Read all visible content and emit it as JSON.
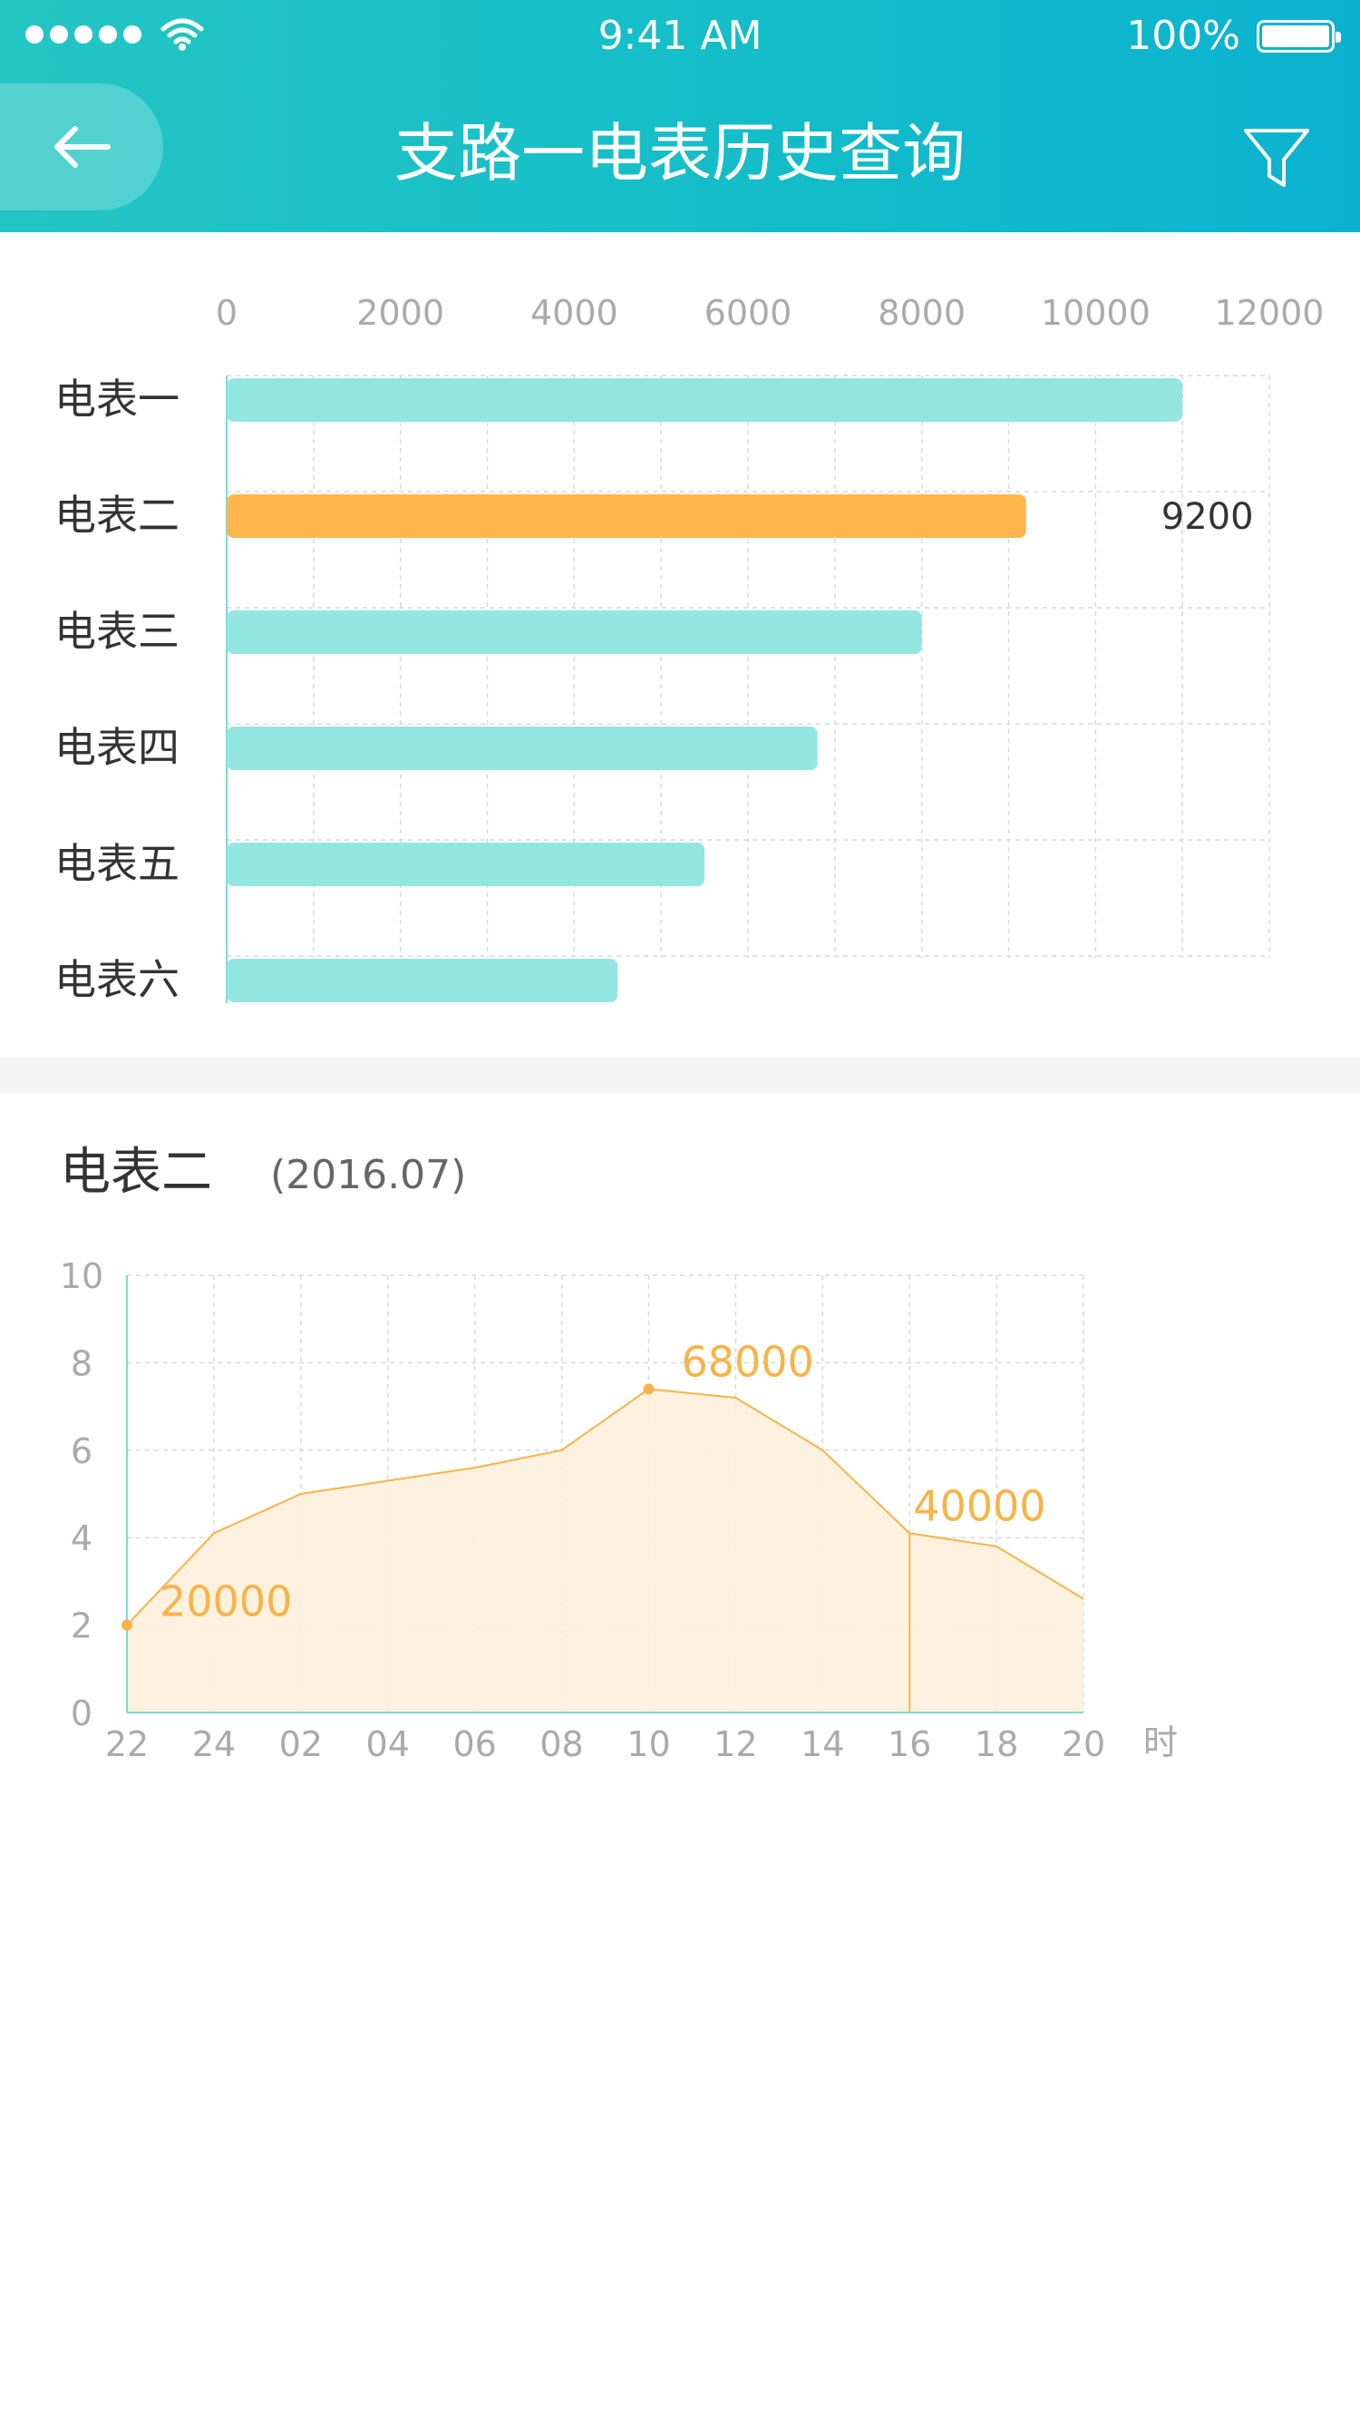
{
  "status_bar": {
    "time": "9:41 AM",
    "battery": "100%"
  },
  "header": {
    "title": "支路一电表历史查询"
  },
  "bar_section": {
    "highlight_value": "9200"
  },
  "detail": {
    "meter": "电表二",
    "period": "(2016.07)",
    "unit": "时",
    "annotations": [
      "20000",
      "68000",
      "40000"
    ]
  },
  "colors": {
    "header_start": "#24c6c3",
    "header_end": "#0bb2d0",
    "bar": "#93e7e0",
    "bar_highlight": "#ffb64c",
    "line": "#f7b448",
    "area": "#fdf0dd"
  },
  "chart_data": [
    {
      "type": "bar",
      "orientation": "horizontal",
      "categories": [
        "电表一",
        "电表二",
        "电表三",
        "电表四",
        "电表五",
        "电表六"
      ],
      "values": [
        11000,
        9200,
        8000,
        6800,
        5500,
        4500
      ],
      "highlight_index": 1,
      "xlim": [
        0,
        12000
      ],
      "x_ticks": [
        "0",
        "2000",
        "4000",
        "6000",
        "8000",
        "10000",
        "12000"
      ],
      "grid": true
    },
    {
      "type": "area",
      "x": [
        "22",
        "24",
        "02",
        "04",
        "06",
        "08",
        "10",
        "12",
        "14",
        "16",
        "18",
        "20"
      ],
      "y": [
        2,
        4.1,
        5,
        5.3,
        5.6,
        6,
        7.4,
        7.2,
        6,
        4.1,
        3.8,
        2.6
      ],
      "ylim": [
        0,
        10
      ],
      "y_ticks": [
        "0",
        "2",
        "4",
        "6",
        "8",
        "10"
      ],
      "xlabel": "时",
      "marker_indices": [
        0,
        6
      ],
      "vertical_marker_index": 9,
      "grid": true
    }
  ]
}
